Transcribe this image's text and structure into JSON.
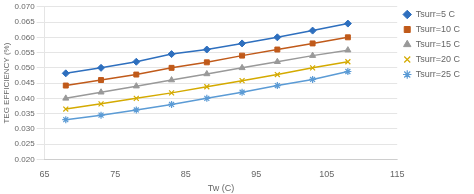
{
  "chart_data": {
    "type": "line",
    "x": [
      68,
      73,
      78,
      83,
      88,
      93,
      98,
      103,
      108
    ],
    "series": [
      {
        "name": "Tsurr=5 C",
        "color": "#2e6fbe",
        "marker": "diamond",
        "values": [
          0.0482,
          0.05,
          0.052,
          0.0545,
          0.056,
          0.058,
          0.06,
          0.0622,
          0.0645
        ]
      },
      {
        "name": "Tsurr=10 C",
        "color": "#c05a1a",
        "marker": "square",
        "values": [
          0.0442,
          0.046,
          0.0478,
          0.05,
          0.0518,
          0.054,
          0.056,
          0.058,
          0.06
        ]
      },
      {
        "name": "Tsurr=15 C",
        "color": "#999999",
        "marker": "triangle",
        "values": [
          0.04,
          0.042,
          0.044,
          0.046,
          0.048,
          0.05,
          0.052,
          0.054,
          0.0558
        ]
      },
      {
        "name": "Tsurr=20 C",
        "color": "#d4aa00",
        "marker": "x",
        "values": [
          0.0365,
          0.0382,
          0.04,
          0.0418,
          0.0438,
          0.0458,
          0.0478,
          0.05,
          0.052
        ]
      },
      {
        "name": "Tsurr=25 C",
        "color": "#5b9bd5",
        "marker": "star",
        "values": [
          0.033,
          0.0345,
          0.0362,
          0.038,
          0.04,
          0.042,
          0.0442,
          0.0462,
          0.0488
        ]
      }
    ],
    "xlabel": "Tw (C)",
    "ylabel": "TEG EFFICIENCY (%)",
    "xlim": [
      65,
      115
    ],
    "ylim": [
      0.02,
      0.07
    ],
    "xticks": [
      65,
      75,
      85,
      95,
      105,
      115
    ],
    "yticks": [
      {
        "value": 0.02,
        "label": "0.020"
      },
      {
        "value": 0.025,
        "label": "0.025"
      },
      {
        "value": 0.03,
        "label": "0.030"
      },
      {
        "value": 0.035,
        "label": "0.035"
      },
      {
        "value": 0.04,
        "label": "0.040"
      },
      {
        "value": 0.045,
        "label": "0.045"
      },
      {
        "value": 0.05,
        "label": "0.050"
      },
      {
        "value": 0.055,
        "label": "0.055"
      },
      {
        "value": 0.06,
        "label": "0.060"
      },
      {
        "value": 0.065,
        "label": "0.065"
      },
      {
        "value": 0.07,
        "label": "0.070"
      }
    ],
    "grid": "y",
    "legend": "right"
  }
}
